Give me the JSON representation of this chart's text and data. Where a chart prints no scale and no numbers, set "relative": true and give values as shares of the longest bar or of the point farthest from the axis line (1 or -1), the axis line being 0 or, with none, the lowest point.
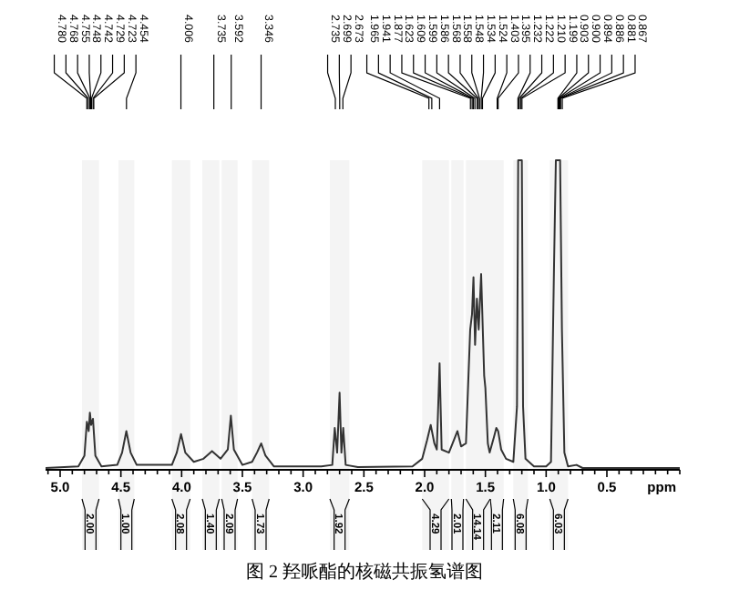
{
  "chart_data": {
    "type": "line",
    "relative": true,
    "xlabel": "ppm",
    "xlim": [
      5.12,
      -0.1
    ],
    "xticks": [
      {
        "value": 5.1,
        "label": null
      },
      {
        "value": 5.0,
        "label": "5.0"
      },
      {
        "value": 4.9,
        "label": null
      },
      {
        "value": 4.8,
        "label": null
      },
      {
        "value": 4.7,
        "label": null
      },
      {
        "value": 4.6,
        "label": null
      },
      {
        "value": 4.5,
        "label": "4.5"
      },
      {
        "value": 4.4,
        "label": null
      },
      {
        "value": 4.3,
        "label": null
      },
      {
        "value": 4.2,
        "label": null
      },
      {
        "value": 4.1,
        "label": null
      },
      {
        "value": 4.0,
        "label": "4.0"
      },
      {
        "value": 3.9,
        "label": null
      },
      {
        "value": 3.8,
        "label": null
      },
      {
        "value": 3.7,
        "label": null
      },
      {
        "value": 3.6,
        "label": null
      },
      {
        "value": 3.5,
        "label": "3.5"
      },
      {
        "value": 3.4,
        "label": null
      },
      {
        "value": 3.3,
        "label": null
      },
      {
        "value": 3.2,
        "label": null
      },
      {
        "value": 3.1,
        "label": null
      },
      {
        "value": 3.0,
        "label": "3.0"
      },
      {
        "value": 2.9,
        "label": null
      },
      {
        "value": 2.8,
        "label": null
      },
      {
        "value": 2.7,
        "label": null
      },
      {
        "value": 2.6,
        "label": null
      },
      {
        "value": 2.5,
        "label": "2.5"
      },
      {
        "value": 2.4,
        "label": null
      },
      {
        "value": 2.3,
        "label": null
      },
      {
        "value": 2.2,
        "label": null
      },
      {
        "value": 2.1,
        "label": null
      },
      {
        "value": 2.0,
        "label": "2.0"
      },
      {
        "value": 1.9,
        "label": null
      },
      {
        "value": 1.8,
        "label": null
      },
      {
        "value": 1.7,
        "label": null
      },
      {
        "value": 1.6,
        "label": null
      },
      {
        "value": 1.5,
        "label": "1.5"
      },
      {
        "value": 1.4,
        "label": null
      },
      {
        "value": 1.3,
        "label": null
      },
      {
        "value": 1.2,
        "label": null
      },
      {
        "value": 1.1,
        "label": null
      },
      {
        "value": 1.0,
        "label": "1.0"
      },
      {
        "value": 0.9,
        "label": null
      },
      {
        "value": 0.8,
        "label": null
      },
      {
        "value": 0.7,
        "label": null
      },
      {
        "value": 0.6,
        "label": null
      },
      {
        "value": 0.5,
        "label": "0.5"
      },
      {
        "value": 0.4,
        "label": null
      },
      {
        "value": 0.3,
        "label": null
      },
      {
        "value": 0.2,
        "label": null
      },
      {
        "value": 0.1,
        "label": null
      },
      {
        "value": 0.0,
        "label": null
      },
      {
        "value": -0.1,
        "label": null
      }
    ],
    "grid": false,
    "series": [
      {
        "color": "#333333",
        "x": [
          5.12,
          4.85,
          4.8,
          4.78,
          4.765,
          4.755,
          4.745,
          4.73,
          4.71,
          4.66,
          4.53,
          4.49,
          4.455,
          4.42,
          4.37,
          4.08,
          4.04,
          4.005,
          3.97,
          3.9,
          3.82,
          3.75,
          3.68,
          3.62,
          3.595,
          3.57,
          3.5,
          3.42,
          3.38,
          3.345,
          3.31,
          3.24,
          2.85,
          2.76,
          2.74,
          2.72,
          2.7,
          2.685,
          2.67,
          2.65,
          2.55,
          2.1,
          2.02,
          1.98,
          1.95,
          1.92,
          1.9,
          1.877,
          1.86,
          1.8,
          1.76,
          1.73,
          1.7,
          1.66,
          1.625,
          1.61,
          1.598,
          1.585,
          1.57,
          1.555,
          1.535,
          1.51,
          1.5,
          1.48,
          1.465,
          1.43,
          1.41,
          1.395,
          1.37,
          1.33,
          1.27,
          1.24,
          1.23,
          1.21,
          1.2,
          1.19,
          1.17,
          1.1,
          1.0,
          0.96,
          0.935,
          0.92,
          0.9,
          0.885,
          0.87,
          0.85,
          0.82,
          0.75,
          0.7,
          -0.1
        ],
        "values": [
          0,
          0.005,
          0.04,
          0.15,
          0.12,
          0.18,
          0.14,
          0.16,
          0.04,
          0.005,
          0.01,
          0.05,
          0.12,
          0.05,
          0.01,
          0.01,
          0.05,
          0.11,
          0.05,
          0.02,
          0.03,
          0.055,
          0.03,
          0.06,
          0.17,
          0.06,
          0.01,
          0.02,
          0.05,
          0.08,
          0.04,
          0.005,
          0.005,
          0.01,
          0.13,
          0.05,
          0.245,
          0.05,
          0.13,
          0.01,
          0.003,
          0.005,
          0.03,
          0.09,
          0.14,
          0.08,
          0.06,
          0.34,
          0.06,
          0.05,
          0.09,
          0.12,
          0.07,
          0.08,
          0.45,
          0.5,
          0.62,
          0.4,
          0.55,
          0.45,
          0.63,
          0.3,
          0.26,
          0.08,
          0.05,
          0.1,
          0.13,
          0.12,
          0.06,
          0.03,
          0.02,
          0.2,
          1,
          1,
          1,
          0.2,
          0.03,
          0.005,
          0.005,
          0.02,
          0.66,
          1,
          1,
          1,
          0.45,
          0.05,
          0.005,
          0.01,
          0,
          0
        ]
      }
    ],
    "annotations": [
      {
        "text": "4.780",
        "x": 4.78
      },
      {
        "text": "4.768",
        "x": 4.768
      },
      {
        "text": "4.755",
        "x": 4.755
      },
      {
        "text": "4.748",
        "x": 4.748
      },
      {
        "text": "4.742",
        "x": 4.742
      },
      {
        "text": "4.729",
        "x": 4.729
      },
      {
        "text": "4.723",
        "x": 4.723
      },
      {
        "text": "4.454",
        "x": 4.454
      },
      {
        "text": "4.006",
        "x": 4.006
      },
      {
        "text": "3.735",
        "x": 3.735
      },
      {
        "text": "3.592",
        "x": 3.592
      },
      {
        "text": "3.346",
        "x": 3.346
      },
      {
        "text": "2.735",
        "x": 2.735
      },
      {
        "text": "2.699",
        "x": 2.699
      },
      {
        "text": "2.673",
        "x": 2.673
      },
      {
        "text": "1.965",
        "x": 1.965
      },
      {
        "text": "1.941",
        "x": 1.941
      },
      {
        "text": "1.877",
        "x": 1.877
      },
      {
        "text": "1.623",
        "x": 1.623
      },
      {
        "text": "1.609",
        "x": 1.609
      },
      {
        "text": "1.599",
        "x": 1.599
      },
      {
        "text": "1.586",
        "x": 1.586
      },
      {
        "text": "1.568",
        "x": 1.568
      },
      {
        "text": "1.558",
        "x": 1.558
      },
      {
        "text": "1.548",
        "x": 1.548
      },
      {
        "text": "1.534",
        "x": 1.534
      },
      {
        "text": "1.524",
        "x": 1.524
      },
      {
        "text": "1.403",
        "x": 1.403
      },
      {
        "text": "1.395",
        "x": 1.395
      },
      {
        "text": "1.232",
        "x": 1.232
      },
      {
        "text": "1.222",
        "x": 1.222
      },
      {
        "text": "1.210",
        "x": 1.21
      },
      {
        "text": "1.199",
        "x": 1.199
      },
      {
        "text": "0.903",
        "x": 0.903
      },
      {
        "text": "0.900",
        "x": 0.9
      },
      {
        "text": "0.894",
        "x": 0.894
      },
      {
        "text": "0.886",
        "x": 0.886
      },
      {
        "text": "0.881",
        "x": 0.881
      },
      {
        "text": "0.867",
        "x": 0.867
      },
      "图 2  羟哌酯的核磁共振氢谱图"
    ],
    "bands": [
      {
        "axis": "x",
        "from": 4.82,
        "to": 4.68,
        "label": "2.00"
      },
      {
        "axis": "x",
        "from": 4.52,
        "to": 4.39,
        "label": "1.00"
      },
      {
        "axis": "x",
        "from": 4.08,
        "to": 3.93,
        "label": "2.08"
      },
      {
        "axis": "x",
        "from": 3.83,
        "to": 3.69,
        "label": "1.40"
      },
      {
        "axis": "x",
        "from": 3.67,
        "to": 3.54,
        "label": "2.09"
      },
      {
        "axis": "x",
        "from": 3.42,
        "to": 3.28,
        "label": "1.73"
      },
      {
        "axis": "x",
        "from": 2.78,
        "to": 2.62,
        "label": "1.92"
      },
      {
        "axis": "x",
        "from": 2.02,
        "to": 1.8,
        "label": "4.29"
      },
      {
        "axis": "x",
        "from": 1.78,
        "to": 1.68,
        "label": "2.01"
      },
      {
        "axis": "x",
        "from": 1.66,
        "to": 1.46,
        "label": "14.14"
      },
      {
        "axis": "x",
        "from": 1.46,
        "to": 1.35,
        "label": "2.11"
      },
      {
        "axis": "x",
        "from": 1.27,
        "to": 1.15,
        "label": "6.08"
      },
      {
        "axis": "x",
        "from": 0.97,
        "to": 0.82,
        "label": "6.03"
      }
    ]
  }
}
